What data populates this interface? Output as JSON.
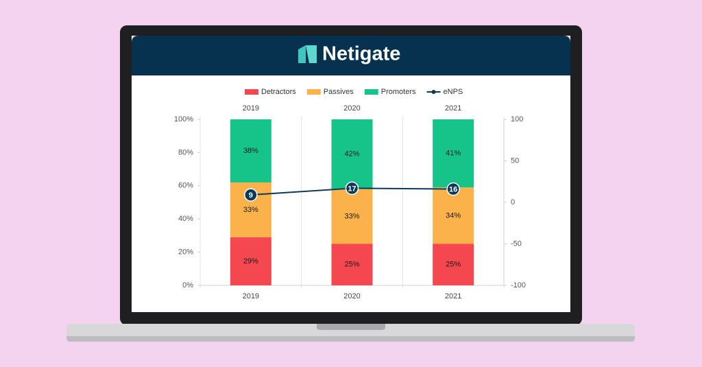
{
  "brand": "Netigate",
  "chart_data": {
    "type": "stacked-bar-line",
    "categories": [
      "2019",
      "2020",
      "2021"
    ],
    "series": [
      {
        "name": "Detractors",
        "color": "#f5474f",
        "values": [
          29,
          25,
          25
        ],
        "value_labels": [
          "29%",
          "25%",
          "25%"
        ]
      },
      {
        "name": "Passives",
        "color": "#fbb24b",
        "values": [
          33,
          33,
          34
        ],
        "value_labels": [
          "33%",
          "33%",
          "34%"
        ]
      },
      {
        "name": "Promoters",
        "color": "#16c489",
        "values": [
          38,
          42,
          41
        ],
        "value_labels": [
          "38%",
          "42%",
          "41%"
        ]
      },
      {
        "name": "eNPS",
        "color": "#0c3a5c",
        "values": [
          9,
          17,
          16
        ],
        "axis": "y2",
        "type": "line"
      }
    ],
    "ylim": [
      0,
      100
    ],
    "yticks": [
      {
        "value": 0,
        "label": "0%"
      },
      {
        "value": 20,
        "label": "20%"
      },
      {
        "value": 40,
        "label": "40%"
      },
      {
        "value": 60,
        "label": "60%"
      },
      {
        "value": 80,
        "label": "80%"
      },
      {
        "value": 100,
        "label": "100%"
      }
    ],
    "y2lim": [
      -100,
      100
    ],
    "y2ticks": [
      -100,
      -50,
      0,
      50,
      100
    ],
    "legend": "top"
  }
}
